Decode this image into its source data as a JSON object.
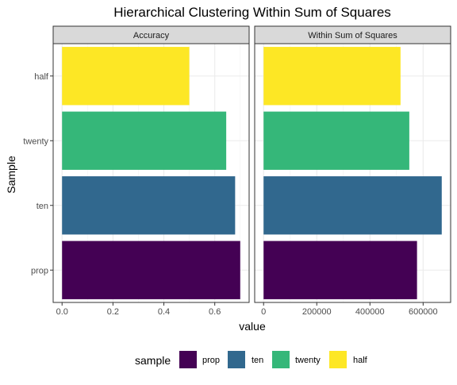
{
  "chart_data": {
    "type": "bar",
    "orientation": "horizontal",
    "title": "Hierarchical Clustering Within Sum of Squares",
    "xlabel": "value",
    "ylabel": "Sample",
    "categories": [
      "half",
      "twenty",
      "ten",
      "prop"
    ],
    "grid": true,
    "legend": {
      "title": "sample",
      "position": "bottom",
      "entries": [
        {
          "label": "prop",
          "color": "#440154"
        },
        {
          "label": "ten",
          "color": "#31688E"
        },
        {
          "label": "twenty",
          "color": "#35B779"
        },
        {
          "label": "half",
          "color": "#FDE725"
        }
      ]
    },
    "colors": {
      "half": "#FDE725",
      "twenty": "#35B779",
      "ten": "#31688E",
      "prop": "#440154"
    },
    "panels": [
      {
        "name": "Accuracy",
        "xlim": [
          -0.035,
          0.735
        ],
        "xticks": [
          0.0,
          0.2,
          0.4,
          0.6
        ],
        "xtick_labels": [
          "0.0",
          "0.2",
          "0.4",
          "0.6"
        ],
        "values": {
          "half": 0.5,
          "twenty": 0.645,
          "ten": 0.68,
          "prop": 0.7
        }
      },
      {
        "name": "Within Sum of Squares",
        "xlim": [
          -33500,
          703500
        ],
        "xticks": [
          0,
          200000,
          400000,
          600000
        ],
        "xtick_labels": [
          "0",
          "200000",
          "400000",
          "600000"
        ],
        "values": {
          "half": 515000,
          "twenty": 548000,
          "ten": 670000,
          "prop": 577000
        }
      }
    ]
  }
}
